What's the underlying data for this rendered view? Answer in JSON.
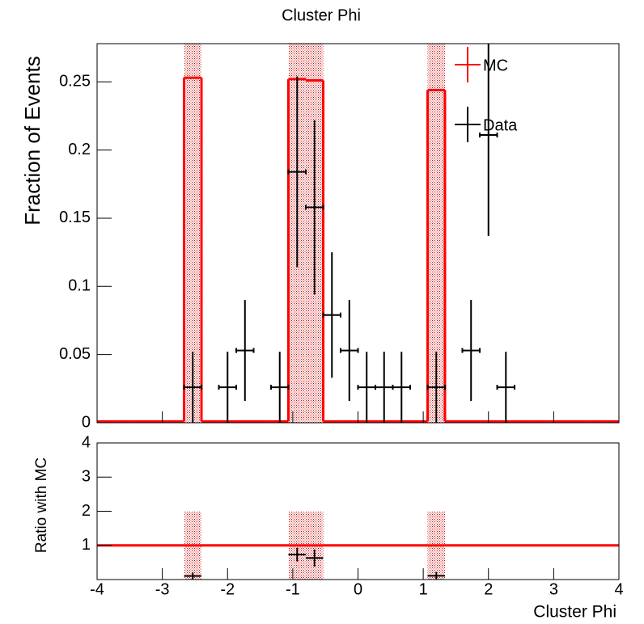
{
  "chart_data": [
    {
      "type": "histogram",
      "title": "Cluster Phi",
      "ylabel": "Fraction of Events",
      "xlim": [
        -4,
        4
      ],
      "ylim": [
        0,
        0.278
      ],
      "yticks": [
        0,
        0.05,
        0.1,
        0.15,
        0.2,
        0.25
      ],
      "legend": "top-right",
      "series": [
        {
          "name": "MC",
          "color": "#ff0000",
          "bins": [
            -4,
            -3.733,
            -3.467,
            -3.2,
            -2.933,
            -2.667,
            -2.4,
            -2.133,
            -1.867,
            -1.6,
            -1.333,
            -1.067,
            -0.8,
            -0.533,
            -0.267,
            0,
            0.267,
            0.533,
            0.8,
            1.067,
            1.333,
            1.6,
            1.867,
            2.133,
            2.4,
            2.667,
            2.933,
            3.2,
            3.467,
            3.733,
            4
          ],
          "values": [
            0.001,
            0.001,
            0.001,
            0.001,
            0.001,
            0.253,
            0.001,
            0.001,
            0.001,
            0.001,
            0.001,
            0.252,
            0.251,
            0.001,
            0.001,
            0.001,
            0.001,
            0.001,
            0.001,
            0.244,
            0.001,
            0.001,
            0.001,
            0.001,
            0.001,
            0.001,
            0.001,
            0.001,
            0.001,
            0.001
          ],
          "errors": [
            0,
            0,
            0,
            0,
            0,
            0.3,
            0,
            0,
            0,
            0,
            0,
            0.3,
            0.3,
            0,
            0,
            0,
            0,
            0,
            0,
            0.3,
            0,
            0,
            0,
            0,
            0,
            0,
            0,
            0,
            0,
            0
          ]
        },
        {
          "name": "Data",
          "color": "#000000",
          "x": [
            -2.533,
            -2,
            -1.733,
            -1.2,
            -0.933,
            -0.667,
            -0.4,
            -0.133,
            0.133,
            0.4,
            0.667,
            1.2,
            1.733,
            2,
            2.267
          ],
          "values": [
            0.026,
            0.026,
            0.053,
            0.026,
            0.184,
            0.158,
            0.079,
            0.053,
            0.026,
            0.026,
            0.026,
            0.026,
            0.053,
            0.211,
            0.026
          ],
          "errors": [
            0.026,
            0.026,
            0.037,
            0.026,
            0.07,
            0.064,
            0.046,
            0.037,
            0.026,
            0.026,
            0.026,
            0.026,
            0.037,
            0.074,
            0.026
          ]
        }
      ]
    },
    {
      "type": "ratio",
      "ylabel": "Ratio with MC",
      "xlabel": "Cluster Phi",
      "xlim": [
        -4,
        4
      ],
      "ylim": [
        0,
        4
      ],
      "xticks": [
        -4,
        -3,
        -2,
        -1,
        0,
        1,
        2,
        3,
        4
      ],
      "yticks": [
        1,
        2,
        3,
        4
      ],
      "reference": 1,
      "reference_color": "#ff0000",
      "band": {
        "color": "#ff0000",
        "edges": [
          [
            -2.667,
            -2.4
          ],
          [
            -1.067,
            -0.533
          ],
          [
            1.067,
            1.333
          ]
        ],
        "values": [
          1,
          1,
          1
        ],
        "errors": [
          1,
          1,
          1
        ]
      },
      "points": {
        "color": "#000000",
        "x": [
          -2.533,
          -0.933,
          -0.667,
          1.2
        ],
        "values": [
          0.104,
          0.73,
          0.63,
          0.108
        ],
        "errors": [
          0.1,
          0.2,
          0.25,
          0.11
        ]
      }
    }
  ]
}
